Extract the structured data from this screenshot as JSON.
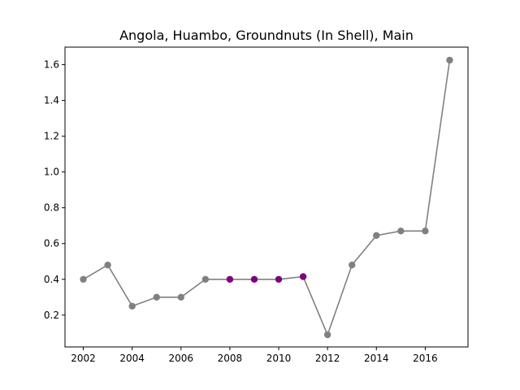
{
  "chart_data": {
    "type": "line",
    "title": "Angola, Huambo, Groundnuts (In Shell), Main",
    "xlabel": "",
    "ylabel": "",
    "xlim": [
      2001.25,
      2017.75
    ],
    "ylim": [
      0.022,
      1.698
    ],
    "x_ticks": [
      2002,
      2004,
      2006,
      2008,
      2010,
      2012,
      2014,
      2016
    ],
    "x_tick_labels": [
      "2002",
      "2004",
      "2006",
      "2008",
      "2010",
      "2012",
      "2014",
      "2016"
    ],
    "y_ticks": [
      0.2,
      0.4,
      0.6,
      0.8,
      1.0,
      1.2,
      1.4,
      1.6
    ],
    "y_tick_labels": [
      "0.2",
      "0.4",
      "0.6",
      "0.8",
      "1.0",
      "1.2",
      "1.4",
      "1.6"
    ],
    "grid": false,
    "series": [
      {
        "name": "Main",
        "line_color": "#808080",
        "x": [
          2002,
          2003,
          2004,
          2005,
          2006,
          2007,
          2008,
          2009,
          2010,
          2011,
          2012,
          2013,
          2014,
          2015,
          2016,
          2017
        ],
        "values": [
          0.4,
          0.48,
          0.25,
          0.3,
          0.3,
          0.4,
          0.4,
          0.4,
          0.4,
          0.415,
          0.09,
          0.48,
          0.645,
          0.67,
          0.67,
          1.625
        ],
        "point_colors": [
          "#808080",
          "#808080",
          "#808080",
          "#808080",
          "#808080",
          "#808080",
          "#800080",
          "#800080",
          "#800080",
          "#800080",
          "#808080",
          "#808080",
          "#808080",
          "#808080",
          "#808080",
          "#808080"
        ]
      }
    ]
  }
}
